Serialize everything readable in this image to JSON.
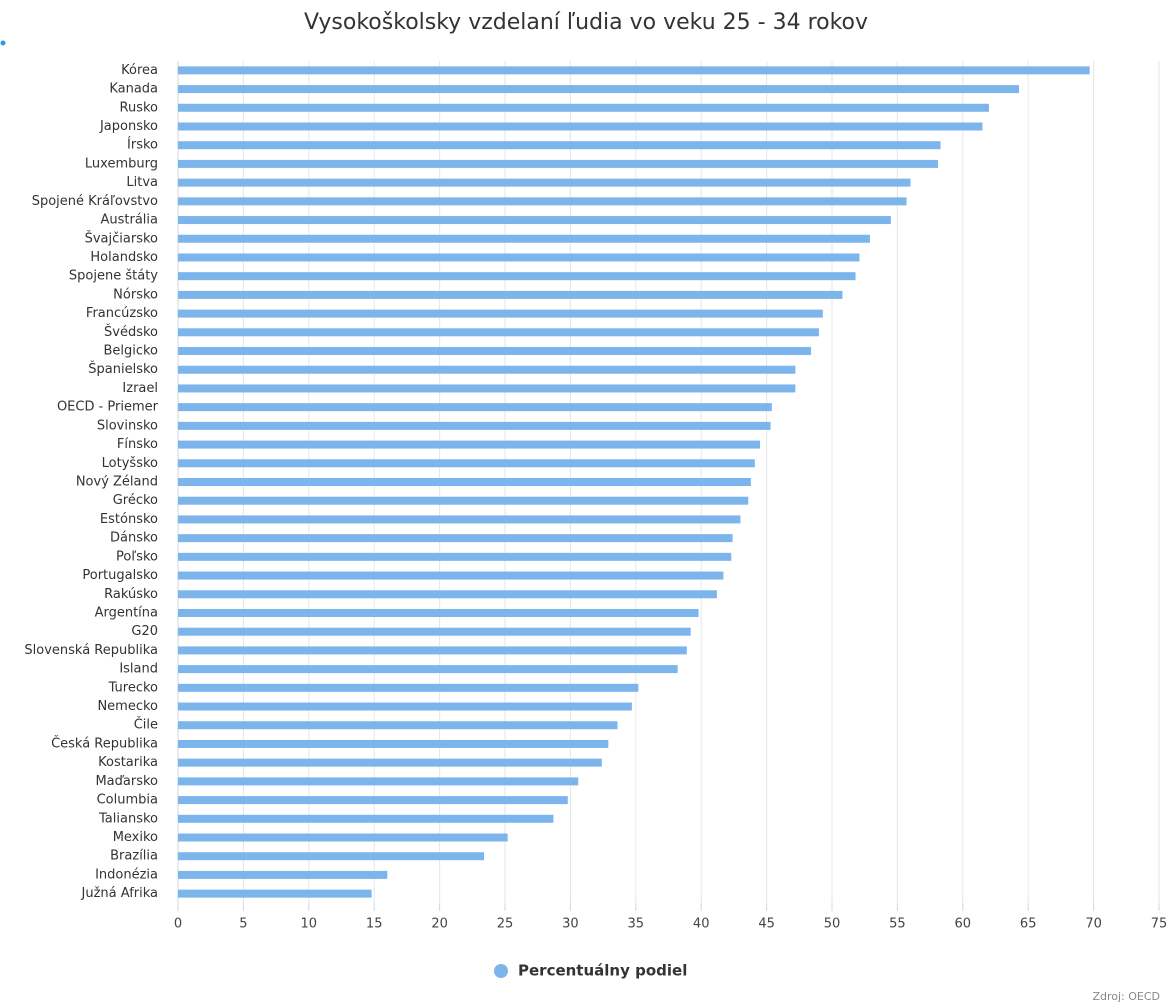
{
  "chart_data": {
    "type": "bar",
    "orientation": "horizontal",
    "title": "Vysokoškolsky vzdelaní ľudia vo veku 25 - 34 rokov",
    "categories": [
      "Kórea",
      "Kanada",
      "Rusko",
      "Japonsko",
      "Írsko",
      "Luxemburg",
      "Litva",
      "Spojené Kráľovstvo",
      "Austrália",
      "Švajčiarsko",
      "Holandsko",
      "Spojene štáty",
      "Nórsko",
      "Francúzsko",
      "Švédsko",
      "Belgicko",
      "Španielsko",
      "Izrael",
      "OECD - Priemer",
      "Slovinsko",
      "Fínsko",
      "Lotyšsko",
      "Nový Zéland",
      "Grécko",
      "Estónsko",
      "Dánsko",
      "Poľsko",
      "Portugalsko",
      "Rakúsko",
      "Argentína",
      "G20",
      "Slovenská Republika",
      "Island",
      "Turecko",
      "Nemecko",
      "Čile",
      "Česká Republika",
      "Kostarika",
      "Maďarsko",
      "Columbia",
      "Taliansko",
      "Mexiko",
      "Brazília",
      "Indonézia",
      "Južná Afrika"
    ],
    "series": [
      {
        "name": "Percentuálny podiel",
        "color": "#7cb5ec",
        "values": [
          69.7,
          64.3,
          62.0,
          61.5,
          58.3,
          58.1,
          56.0,
          55.7,
          54.5,
          52.9,
          52.1,
          51.8,
          50.8,
          49.3,
          49.0,
          48.4,
          47.2,
          47.2,
          45.4,
          45.3,
          44.5,
          44.1,
          43.8,
          43.6,
          43.0,
          42.4,
          42.3,
          41.7,
          41.2,
          39.8,
          39.2,
          38.9,
          38.2,
          35.2,
          34.7,
          33.6,
          32.9,
          32.4,
          30.6,
          29.8,
          28.7,
          25.2,
          23.4,
          16.0,
          14.8
        ]
      }
    ],
    "xlim": [
      0,
      75
    ],
    "xticks": [
      0,
      5,
      10,
      15,
      20,
      25,
      30,
      35,
      40,
      45,
      50,
      55,
      60,
      65,
      70,
      75
    ],
    "grid": true,
    "legend": "bottom",
    "source": "Zdroj: OECD"
  }
}
